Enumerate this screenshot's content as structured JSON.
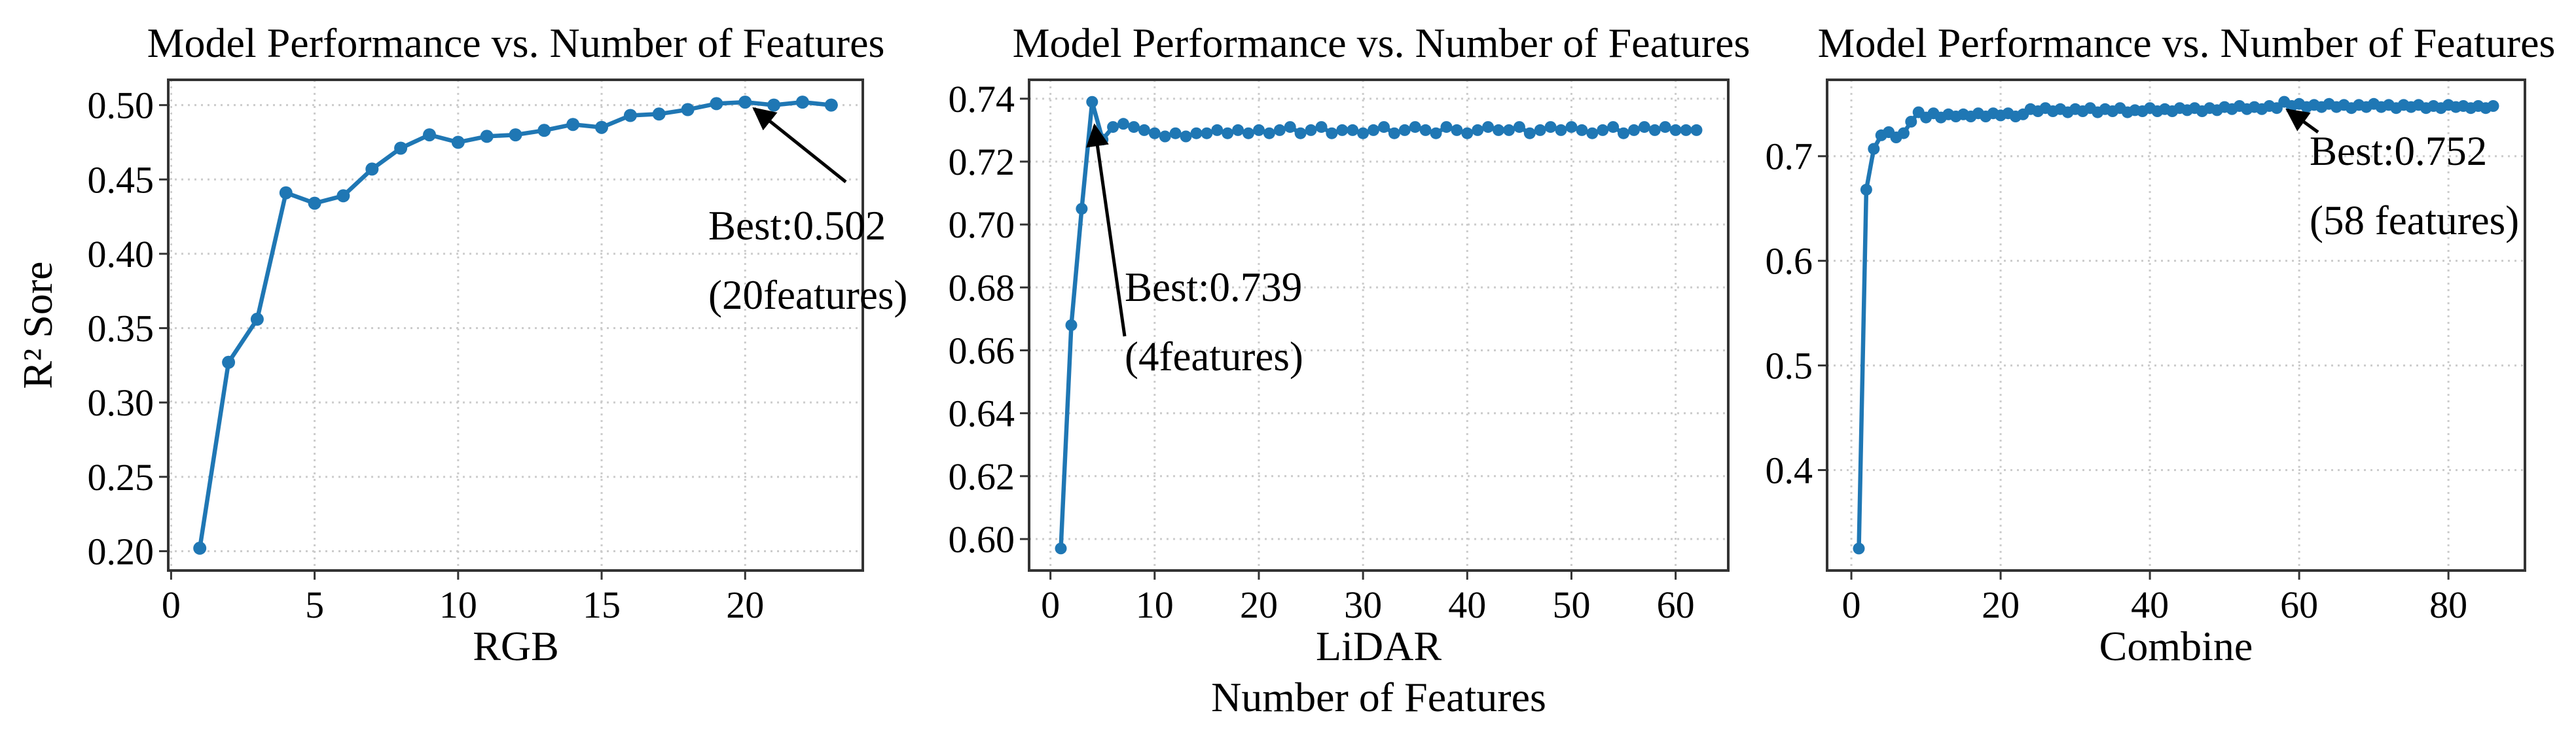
{
  "figure": {
    "background": "#ffffff",
    "line_color": "#1f77b4",
    "grid_color": "#cccccc",
    "spine_color": "#333333",
    "text_color": "#000000"
  },
  "shared": {
    "ylabel": "R² Sore",
    "xlabel": "Number of Features"
  },
  "chart_data": [
    {
      "type": "line",
      "title": "Model Performance vs. Number of Features",
      "xlabel": "RGB",
      "grid": true,
      "legend_position": "none",
      "xlim": [
        -0.1,
        24.1
      ],
      "ylim": [
        0.187,
        0.517
      ],
      "xticks": [
        0,
        5,
        10,
        15,
        20
      ],
      "xtick_labels": [
        "0",
        "5",
        "10",
        "15",
        "20"
      ],
      "yticks": [
        0.2,
        0.25,
        0.3,
        0.35,
        0.4,
        0.45,
        0.5
      ],
      "ytick_labels": [
        "0.20",
        "0.25",
        "0.30",
        "0.35",
        "0.40",
        "0.45",
        "0.50"
      ],
      "x": [
        1,
        2,
        3,
        4,
        5,
        6,
        7,
        8,
        9,
        10,
        11,
        12,
        13,
        14,
        15,
        16,
        17,
        18,
        19,
        20,
        21,
        22,
        23
      ],
      "y": [
        0.202,
        0.327,
        0.356,
        0.441,
        0.434,
        0.439,
        0.457,
        0.471,
        0.48,
        0.475,
        0.479,
        0.48,
        0.483,
        0.487,
        0.485,
        0.493,
        0.494,
        0.497,
        0.501,
        0.502,
        0.5,
        0.502,
        0.5
      ],
      "annotation": {
        "line1": "Best:0.502",
        "line2": "(20features)",
        "best_x": 20,
        "best_y": 0.502
      }
    },
    {
      "type": "line",
      "title": "Model Performance vs. Number of Features",
      "xlabel": "LiDAR",
      "grid": true,
      "legend_position": "none",
      "xlim": [
        -2.05,
        65.05
      ],
      "ylim": [
        0.59,
        0.746
      ],
      "xticks": [
        0,
        10,
        20,
        30,
        40,
        50,
        60
      ],
      "xtick_labels": [
        "0",
        "10",
        "20",
        "30",
        "40",
        "50",
        "60"
      ],
      "yticks": [
        0.6,
        0.62,
        0.64,
        0.66,
        0.68,
        0.7,
        0.72,
        0.74
      ],
      "ytick_labels": [
        "0.60",
        "0.62",
        "0.64",
        "0.66",
        "0.68",
        "0.70",
        "0.72",
        "0.74"
      ],
      "x": [
        1,
        2,
        3,
        4,
        5,
        6,
        7,
        8,
        9,
        10,
        11,
        12,
        13,
        14,
        15,
        16,
        17,
        18,
        19,
        20,
        21,
        22,
        23,
        24,
        25,
        26,
        27,
        28,
        29,
        30,
        31,
        32,
        33,
        34,
        35,
        36,
        37,
        38,
        39,
        40,
        41,
        42,
        43,
        44,
        45,
        46,
        47,
        48,
        49,
        50,
        51,
        52,
        53,
        54,
        55,
        56,
        57,
        58,
        59,
        60,
        61,
        62
      ],
      "y": [
        0.597,
        0.668,
        0.705,
        0.739,
        0.727,
        0.731,
        0.732,
        0.731,
        0.73,
        0.729,
        0.728,
        0.729,
        0.728,
        0.729,
        0.729,
        0.73,
        0.729,
        0.73,
        0.729,
        0.73,
        0.729,
        0.73,
        0.731,
        0.729,
        0.73,
        0.731,
        0.729,
        0.73,
        0.73,
        0.729,
        0.73,
        0.731,
        0.729,
        0.73,
        0.731,
        0.73,
        0.729,
        0.731,
        0.73,
        0.729,
        0.73,
        0.731,
        0.73,
        0.73,
        0.731,
        0.729,
        0.73,
        0.731,
        0.73,
        0.731,
        0.73,
        0.729,
        0.73,
        0.731,
        0.729,
        0.73,
        0.731,
        0.73,
        0.731,
        0.73,
        0.73,
        0.73
      ],
      "annotation": {
        "line1": "Best:0.739",
        "line2": "(4features)",
        "best_x": 4,
        "best_y": 0.739
      }
    },
    {
      "type": "line",
      "title": "Model Performance vs. Number of Features",
      "xlabel": "Combine",
      "grid": true,
      "legend_position": "none",
      "xlim": [
        -3.25,
        90.25
      ],
      "ylim": [
        0.304,
        0.773
      ],
      "xticks": [
        0,
        20,
        40,
        60,
        80
      ],
      "xtick_labels": [
        "0",
        "20",
        "40",
        "60",
        "80"
      ],
      "yticks": [
        0.4,
        0.5,
        0.6,
        0.7
      ],
      "ytick_labels": [
        "0.4",
        "0.5",
        "0.6",
        "0.7"
      ],
      "x": [
        1,
        2,
        3,
        4,
        5,
        6,
        7,
        8,
        9,
        10,
        11,
        12,
        13,
        14,
        15,
        16,
        17,
        18,
        19,
        20,
        21,
        22,
        23,
        24,
        25,
        26,
        27,
        28,
        29,
        30,
        31,
        32,
        33,
        34,
        35,
        36,
        37,
        38,
        39,
        40,
        41,
        42,
        43,
        44,
        45,
        46,
        47,
        48,
        49,
        50,
        51,
        52,
        53,
        54,
        55,
        56,
        57,
        58,
        59,
        60,
        61,
        62,
        63,
        64,
        65,
        66,
        67,
        68,
        69,
        70,
        71,
        72,
        73,
        74,
        75,
        76,
        77,
        78,
        79,
        80,
        81,
        82,
        83,
        84,
        85,
        86
      ],
      "y": [
        0.325,
        0.668,
        0.707,
        0.72,
        0.723,
        0.718,
        0.722,
        0.733,
        0.742,
        0.737,
        0.741,
        0.737,
        0.74,
        0.738,
        0.74,
        0.738,
        0.741,
        0.738,
        0.741,
        0.739,
        0.741,
        0.738,
        0.74,
        0.745,
        0.743,
        0.746,
        0.743,
        0.745,
        0.742,
        0.745,
        0.743,
        0.746,
        0.742,
        0.745,
        0.743,
        0.746,
        0.742,
        0.744,
        0.743,
        0.746,
        0.743,
        0.745,
        0.743,
        0.746,
        0.744,
        0.746,
        0.743,
        0.746,
        0.744,
        0.747,
        0.745,
        0.748,
        0.745,
        0.747,
        0.745,
        0.748,
        0.746,
        0.752,
        0.748,
        0.75,
        0.747,
        0.749,
        0.747,
        0.75,
        0.747,
        0.749,
        0.746,
        0.749,
        0.747,
        0.75,
        0.747,
        0.749,
        0.746,
        0.749,
        0.747,
        0.749,
        0.746,
        0.748,
        0.746,
        0.749,
        0.747,
        0.748,
        0.746,
        0.748,
        0.746,
        0.748
      ],
      "annotation": {
        "line1": "Best:0.752",
        "line2": "(58 features)",
        "best_x": 58,
        "best_y": 0.752
      }
    }
  ]
}
